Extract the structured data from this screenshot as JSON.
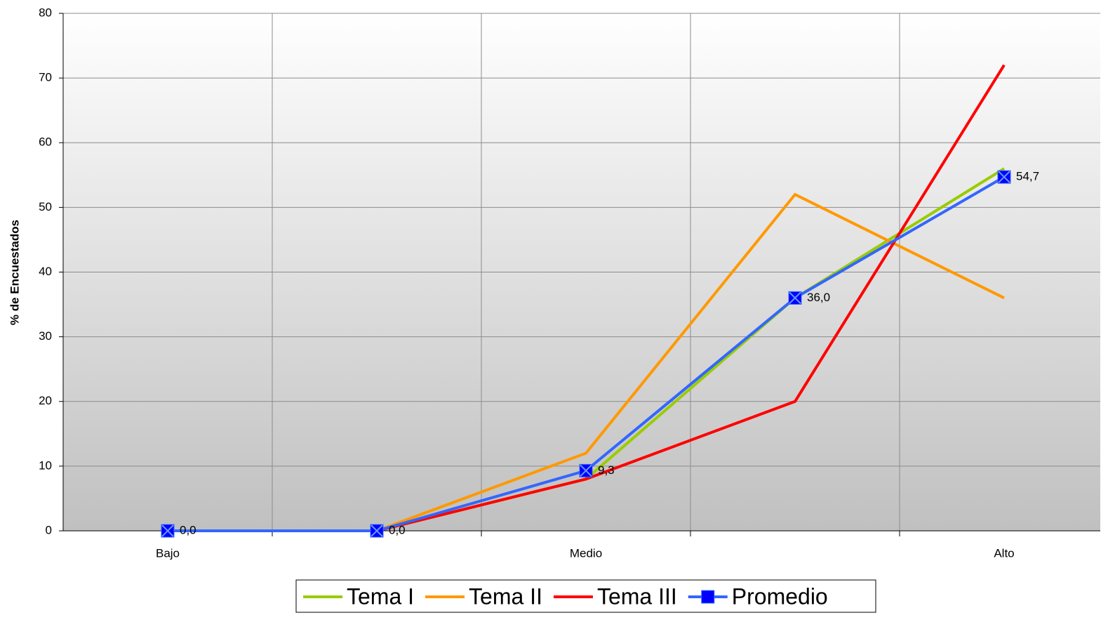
{
  "chart_data": {
    "type": "line",
    "y_label": "% de Encuestados",
    "categories": [
      "Bajo",
      null,
      "Medio",
      null,
      "Alto"
    ],
    "series": [
      {
        "name": "Tema I",
        "color": "#99cc00",
        "values": [
          0,
          0,
          8,
          36,
          56
        ]
      },
      {
        "name": "Tema II",
        "color": "#ff9900",
        "values": [
          0,
          0,
          12,
          52,
          36
        ]
      },
      {
        "name": "Tema III",
        "color": "#ff0000",
        "values": [
          0,
          0,
          8,
          20,
          72
        ]
      },
      {
        "name": "Promedio",
        "color": "#3366ff",
        "marker_color": "#0000ff",
        "values": [
          0,
          0,
          9.3,
          36,
          54.7
        ],
        "value_labels": [
          "0,0",
          "0,0",
          "9,3",
          "36,0",
          "54,7"
        ]
      }
    ],
    "ylim": [
      0,
      80
    ],
    "yticks": [
      0,
      10,
      20,
      30,
      40,
      50,
      60,
      70,
      80
    ],
    "grid": true,
    "legend": "bottom"
  }
}
